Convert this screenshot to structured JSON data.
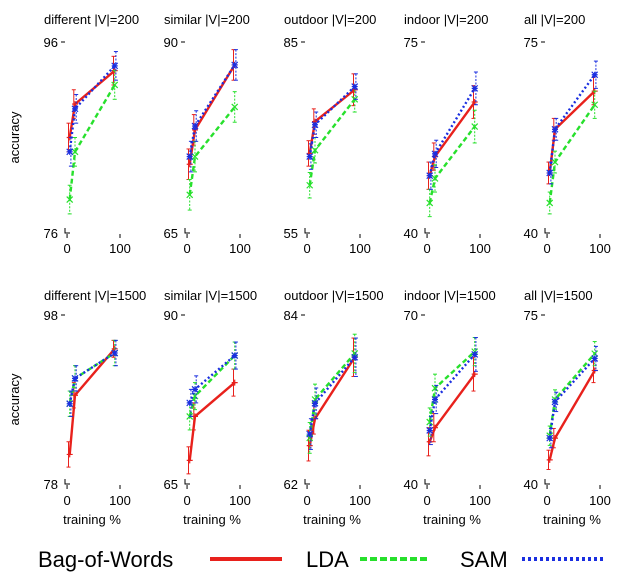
{
  "legend": [
    {
      "label": "Bag-of-Words",
      "color": "#e8211c",
      "style": "solid"
    },
    {
      "label": "LDA",
      "color": "#27e02c",
      "style": "dashed"
    },
    {
      "label": "SAM",
      "color": "#1a2ee0",
      "style": "dotted"
    }
  ],
  "chart_data": [
    {
      "type": "line",
      "title": "different |V|=200",
      "ylabel": "accuracy",
      "xlabel": "",
      "ylim": [
        76,
        96
      ],
      "y_ticks": [
        "96",
        "76"
      ],
      "x_ticks": [
        "0",
        "100"
      ],
      "x": [
        5,
        15,
        90
      ],
      "series": [
        {
          "name": "Bag-of-Words",
          "values": [
            86.0,
            89.5,
            93.0
          ],
          "errors": [
            1.5,
            1.5,
            1.5
          ]
        },
        {
          "name": "LDA",
          "values": [
            79.5,
            84.5,
            91.5
          ],
          "errors": [
            1.5,
            1.5,
            1.5
          ]
        },
        {
          "name": "SAM",
          "values": [
            84.5,
            89.0,
            93.5
          ],
          "errors": [
            1.5,
            1.5,
            1.5
          ]
        }
      ]
    },
    {
      "type": "line",
      "title": "similar |V|=200",
      "xlabel": "",
      "ylim": [
        65,
        90
      ],
      "y_ticks": [
        "90",
        "65"
      ],
      "x_ticks": [
        "0",
        "100"
      ],
      "x": [
        5,
        15,
        90
      ],
      "series": [
        {
          "name": "Bag-of-Words",
          "values": [
            74.0,
            78.5,
            87.0
          ],
          "errors": [
            2.0,
            2.0,
            2.0
          ]
        },
        {
          "name": "LDA",
          "values": [
            70.0,
            75.0,
            81.5
          ],
          "errors": [
            2.0,
            2.0,
            2.0
          ]
        },
        {
          "name": "SAM",
          "values": [
            75.0,
            79.0,
            87.0
          ],
          "errors": [
            2.0,
            2.0,
            2.0
          ]
        }
      ]
    },
    {
      "type": "line",
      "title": "outdoor |V|=200",
      "xlabel": "",
      "ylim": [
        55,
        85
      ],
      "y_ticks": [
        "85",
        "55"
      ],
      "x_ticks": [
        "0",
        "100"
      ],
      "x": [
        5,
        15,
        90
      ],
      "series": [
        {
          "name": "Bag-of-Words",
          "values": [
            67.5,
            72.5,
            77.5
          ],
          "errors": [
            2.0,
            2.0,
            2.5
          ]
        },
        {
          "name": "LDA",
          "values": [
            62.5,
            68.0,
            76.0
          ],
          "errors": [
            2.0,
            2.0,
            2.0
          ]
        },
        {
          "name": "SAM",
          "values": [
            67.0,
            72.0,
            78.0
          ],
          "errors": [
            2.0,
            2.0,
            2.0
          ]
        }
      ]
    },
    {
      "type": "line",
      "title": "indoor |V|=200",
      "xlabel": "",
      "ylim": [
        40,
        75
      ],
      "y_ticks": [
        "75",
        "40"
      ],
      "x_ticks": [
        "0",
        "100"
      ],
      "x": [
        5,
        15,
        90
      ],
      "series": [
        {
          "name": "Bag-of-Words",
          "values": [
            50.5,
            54.0,
            64.0
          ],
          "errors": [
            2.5,
            2.5,
            3.0
          ]
        },
        {
          "name": "LDA",
          "values": [
            45.5,
            50.0,
            59.5
          ],
          "errors": [
            2.5,
            2.5,
            3.0
          ]
        },
        {
          "name": "SAM",
          "values": [
            50.5,
            54.5,
            66.5
          ],
          "errors": [
            2.5,
            2.5,
            3.0
          ]
        }
      ]
    },
    {
      "type": "line",
      "title": "all |V|=200",
      "xlabel": "",
      "ylim": [
        40,
        75
      ],
      "y_ticks": [
        "75",
        "40"
      ],
      "x_ticks": [
        "0",
        "100"
      ],
      "x": [
        5,
        15,
        90
      ],
      "series": [
        {
          "name": "Bag-of-Words",
          "values": [
            51.0,
            59.0,
            66.0
          ],
          "errors": [
            2.0,
            2.0,
            2.5
          ]
        },
        {
          "name": "LDA",
          "values": [
            45.5,
            53.0,
            63.5
          ],
          "errors": [
            2.0,
            2.0,
            2.5
          ]
        },
        {
          "name": "SAM",
          "values": [
            51.0,
            59.0,
            69.0
          ],
          "errors": [
            2.0,
            2.0,
            2.5
          ]
        }
      ]
    },
    {
      "type": "line",
      "title": "different |V|=1500",
      "ylabel": "accuracy",
      "xlabel": "training %",
      "ylim": [
        78,
        98
      ],
      "y_ticks": [
        "98",
        "78"
      ],
      "x_ticks": [
        "0",
        "100"
      ],
      "x": [
        5,
        15,
        90
      ],
      "series": [
        {
          "name": "Bag-of-Words",
          "values": [
            81.5,
            88.5,
            94.0
          ],
          "errors": [
            1.5,
            1.5,
            1.0
          ]
        },
        {
          "name": "LDA",
          "values": [
            87.5,
            90.5,
            93.5
          ],
          "errors": [
            1.5,
            1.5,
            1.5
          ]
        },
        {
          "name": "SAM",
          "values": [
            87.5,
            90.5,
            93.5
          ],
          "errors": [
            1.5,
            1.5,
            1.5
          ]
        }
      ]
    },
    {
      "type": "line",
      "title": "similar |V|=1500",
      "xlabel": "training %",
      "ylim": [
        65,
        90
      ],
      "y_ticks": [
        "90",
        "65"
      ],
      "x_ticks": [
        "0",
        "100"
      ],
      "x": [
        5,
        15,
        90
      ],
      "series": [
        {
          "name": "Bag-of-Words",
          "values": [
            68.5,
            75.0,
            80.0
          ],
          "errors": [
            2.0,
            2.0,
            2.0
          ]
        },
        {
          "name": "LDA",
          "values": [
            75.0,
            78.0,
            84.0
          ],
          "errors": [
            2.0,
            2.0,
            2.0
          ]
        },
        {
          "name": "SAM",
          "values": [
            77.0,
            79.0,
            84.0
          ],
          "errors": [
            2.0,
            2.0,
            2.0
          ]
        }
      ]
    },
    {
      "type": "line",
      "title": "outdoor |V|=1500",
      "xlabel": "training %",
      "ylim": [
        62,
        84
      ],
      "y_ticks": [
        "84",
        "62"
      ],
      "x_ticks": [
        "0",
        "100"
      ],
      "x": [
        5,
        15,
        90
      ],
      "series": [
        {
          "name": "Bag-of-Words",
          "values": [
            67.0,
            70.5,
            78.5
          ],
          "errors": [
            2.0,
            2.0,
            2.5
          ]
        },
        {
          "name": "LDA",
          "values": [
            68.0,
            73.0,
            79.0
          ],
          "errors": [
            2.0,
            2.0,
            2.5
          ]
        },
        {
          "name": "SAM",
          "values": [
            68.5,
            72.5,
            78.5
          ],
          "errors": [
            2.0,
            2.0,
            2.5
          ]
        }
      ]
    },
    {
      "type": "line",
      "title": "indoor |V|=1500",
      "xlabel": "training %",
      "ylim": [
        40,
        70
      ],
      "y_ticks": [
        "70",
        "40"
      ],
      "x_ticks": [
        "0",
        "100"
      ],
      "x": [
        5,
        15,
        90
      ],
      "series": [
        {
          "name": "Bag-of-Words",
          "values": [
            47.5,
            50.0,
            59.5
          ],
          "errors": [
            2.5,
            2.5,
            3.0
          ]
        },
        {
          "name": "LDA",
          "values": [
            51.0,
            57.0,
            63.5
          ],
          "errors": [
            2.5,
            2.5,
            2.5
          ]
        },
        {
          "name": "SAM",
          "values": [
            49.5,
            55.0,
            63.0
          ],
          "errors": [
            2.5,
            2.5,
            3.0
          ]
        }
      ]
    },
    {
      "type": "line",
      "title": "all |V|=1500",
      "xlabel": "training %",
      "ylim": [
        40,
        75
      ],
      "y_ticks": [
        "75",
        "40"
      ],
      "x_ticks": [
        "0",
        "100"
      ],
      "x": [
        5,
        15,
        90
      ],
      "series": [
        {
          "name": "Bag-of-Words",
          "values": [
            45.0,
            49.5,
            63.5
          ],
          "errors": [
            2.0,
            2.0,
            2.5
          ]
        },
        {
          "name": "LDA",
          "values": [
            50.0,
            57.5,
            67.0
          ],
          "errors": [
            2.0,
            2.0,
            2.5
          ]
        },
        {
          "name": "SAM",
          "values": [
            49.5,
            57.0,
            66.0
          ],
          "errors": [
            2.0,
            2.0,
            2.5
          ]
        }
      ]
    }
  ]
}
